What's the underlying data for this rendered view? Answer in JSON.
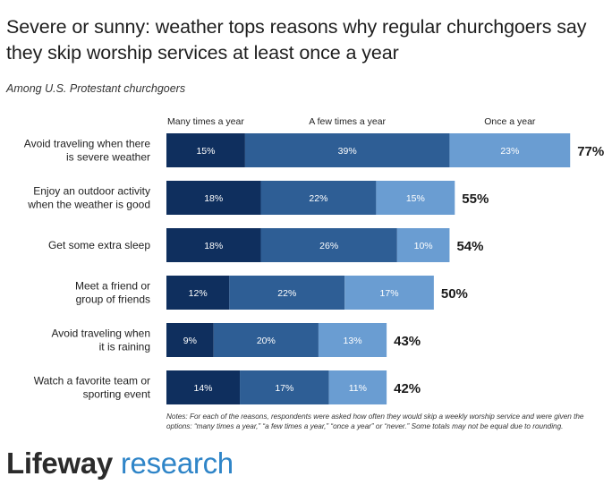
{
  "header": {
    "title": "Severe or sunny: weather tops reasons why regular churchgoers say they skip worship services at least once a year",
    "subtitle": "Among U.S. Protestant churchgoers"
  },
  "footer": {
    "note": "Notes: For each of the reasons, respondents were asked how often they would skip a weekly worship service and were given the options: “many times a year,” “a few times a year,” “once a year” or “never.” Some totals may not be equal due to rounding.",
    "brand": "Lifeway",
    "brand_sub": "research"
  },
  "colors": {
    "many": "#0f2f5e",
    "few": "#2e5e95",
    "once": "#6a9dd2"
  },
  "chart_data": {
    "type": "bar",
    "orientation": "horizontal",
    "stacked": true,
    "categories": [
      [
        "Avoid traveling when there",
        "is severe weather"
      ],
      [
        "Enjoy an outdoor activity",
        "when the weather is good"
      ],
      [
        "Get some extra sleep"
      ],
      [
        "Meet a friend or",
        "group of friends"
      ],
      [
        "Avoid traveling when",
        "it is raining"
      ],
      [
        "Watch a favorite team or",
        "sporting event"
      ]
    ],
    "series": [
      {
        "name": "Many times a year",
        "values": [
          15,
          18,
          18,
          12,
          9,
          14
        ]
      },
      {
        "name": "A few times a year",
        "values": [
          39,
          22,
          26,
          22,
          20,
          17
        ]
      },
      {
        "name": "Once a year",
        "values": [
          23,
          15,
          10,
          17,
          13,
          11
        ]
      }
    ],
    "totals": [
      77,
      55,
      54,
      50,
      43,
      42
    ],
    "value_suffix": "%",
    "legend": "top"
  }
}
